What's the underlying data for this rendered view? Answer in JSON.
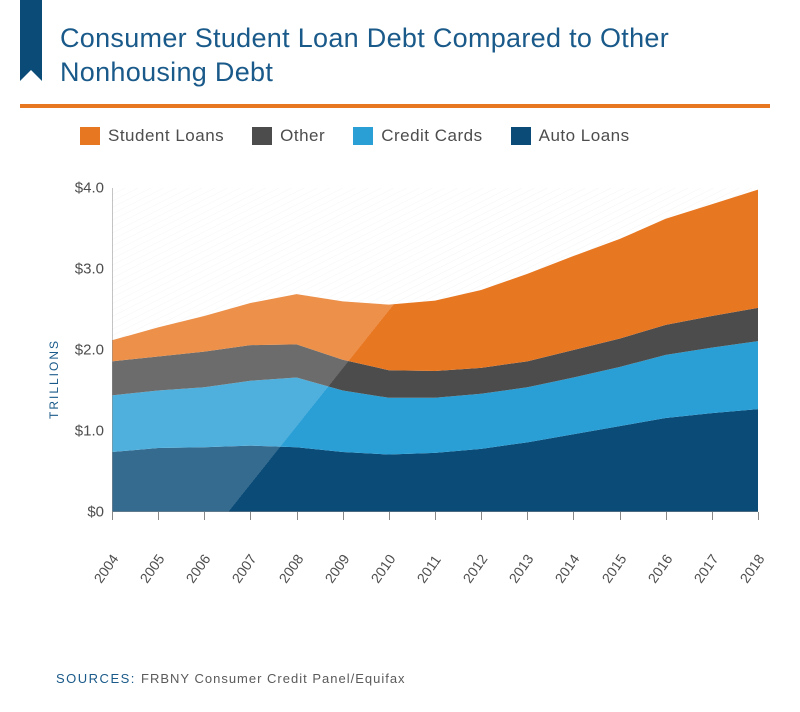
{
  "title": "Consumer Student Loan Debt Compared to Other Nonhousing Debt",
  "rule_color": "#e87722",
  "ribbon_color": "#0a4b78",
  "legend": [
    {
      "label": "Student Loans",
      "color": "#e87722"
    },
    {
      "label": "Other",
      "color": "#4c4c4c"
    },
    {
      "label": "Credit Cards",
      "color": "#2a9fd6"
    },
    {
      "label": "Auto Loans",
      "color": "#0a4b78"
    }
  ],
  "ylabel": "TRILLIONS",
  "sources_label": "SOURCES:",
  "sources_value": "FRBNY Consumer Credit Panel/Equifax",
  "chart": {
    "type": "stacked-area",
    "ylim": [
      0,
      4.0
    ],
    "ytick_step": 1.0,
    "ytick_fmt": "$",
    "years": [
      2004,
      2005,
      2006,
      2007,
      2008,
      2009,
      2010,
      2011,
      2012,
      2013,
      2014,
      2015,
      2016,
      2017,
      2018
    ],
    "series": {
      "auto": [
        0.74,
        0.79,
        0.8,
        0.82,
        0.8,
        0.74,
        0.71,
        0.73,
        0.78,
        0.86,
        0.96,
        1.06,
        1.16,
        1.22,
        1.27
      ],
      "credit": [
        0.7,
        0.71,
        0.74,
        0.8,
        0.86,
        0.76,
        0.7,
        0.68,
        0.68,
        0.68,
        0.7,
        0.73,
        0.78,
        0.81,
        0.84
      ],
      "other": [
        0.42,
        0.42,
        0.44,
        0.44,
        0.41,
        0.38,
        0.34,
        0.33,
        0.32,
        0.32,
        0.34,
        0.35,
        0.37,
        0.39,
        0.41
      ],
      "student": [
        0.26,
        0.36,
        0.44,
        0.52,
        0.62,
        0.72,
        0.81,
        0.87,
        0.96,
        1.08,
        1.16,
        1.23,
        1.31,
        1.38,
        1.46
      ]
    },
    "stack_order": [
      "auto",
      "credit",
      "other",
      "student"
    ],
    "colors": {
      "auto": "#0a4b78",
      "credit": "#2a9fd6",
      "other": "#4c4c4c",
      "student": "#e87722"
    },
    "background": "#ffffff",
    "hatch_color": "#e8e8e8",
    "axis_color": "#888888",
    "label_fontsize": 15,
    "title_fontsize": 27
  }
}
